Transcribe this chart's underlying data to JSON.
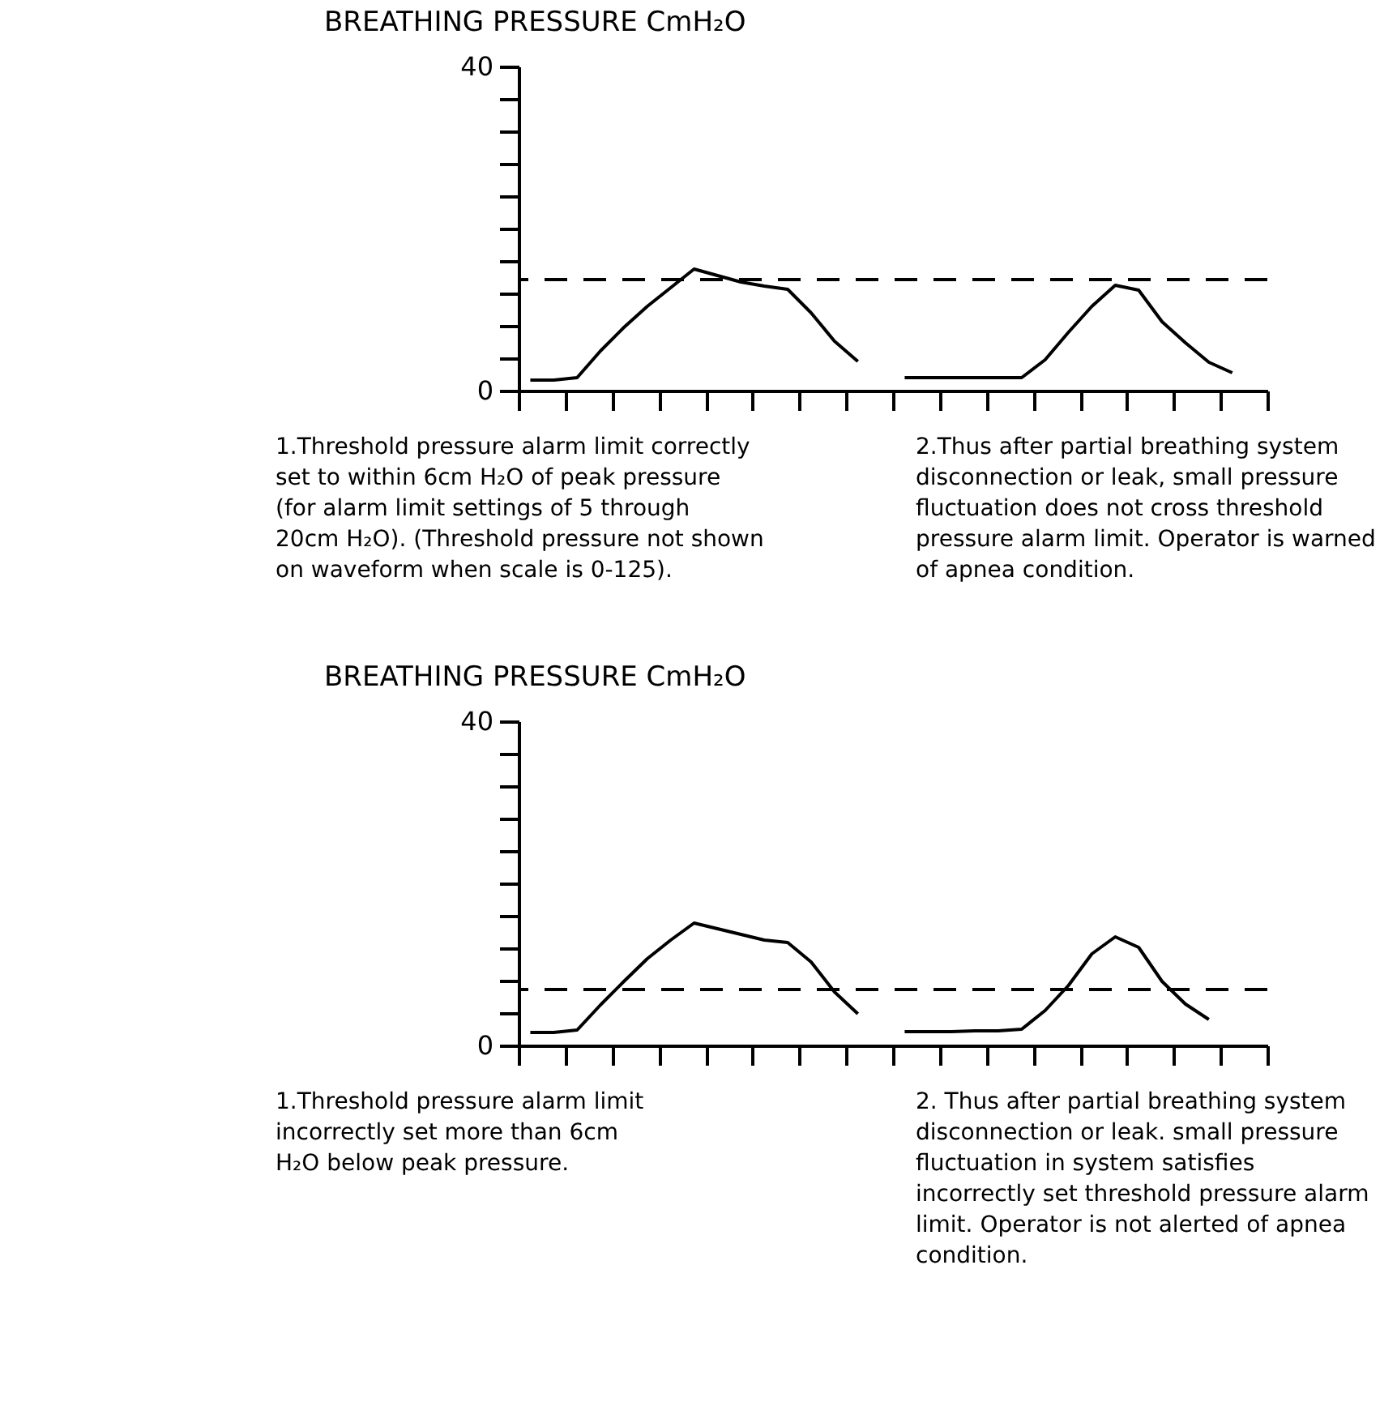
{
  "chart_data": [
    {
      "type": "line",
      "title": "BREATHING PRESSURE CmH₂O",
      "ylim": [
        0,
        40
      ],
      "categories": [
        null,
        null,
        null,
        null,
        null,
        null,
        null,
        null,
        null,
        null,
        null,
        null,
        null,
        null,
        null,
        null,
        null,
        null,
        null,
        null,
        null,
        null,
        null,
        null,
        null,
        null,
        null,
        null,
        null,
        null,
        null,
        null
      ],
      "yticks": [
        0,
        {
          "value": 4,
          "label": null
        },
        {
          "value": 8,
          "label": null
        },
        {
          "value": 12,
          "label": null
        },
        {
          "value": 16,
          "label": null
        },
        {
          "value": 20,
          "label": null
        },
        {
          "value": 24,
          "label": null
        },
        {
          "value": 28,
          "label": null
        },
        {
          "value": 32,
          "label": null
        },
        {
          "value": 36,
          "label": null
        },
        40
      ],
      "tick_labels": "y",
      "series": [
        {
          "color": "#000000",
          "values": [
            1.3,
            1.3,
            1.6,
            4.9,
            7.8,
            10.4,
            12.7,
            15.0,
            14.2,
            13.4,
            12.9,
            12.5,
            9.6,
            6.1,
            3.6,
            null,
            null,
            null,
            null,
            null,
            null,
            null,
            null,
            null,
            null,
            null,
            null,
            null,
            null,
            null,
            null,
            null
          ]
        },
        {
          "color": "#000000",
          "values": [
            null,
            null,
            null,
            null,
            null,
            null,
            null,
            null,
            null,
            null,
            null,
            null,
            null,
            null,
            null,
            null,
            1.6,
            1.6,
            1.6,
            1.6,
            1.6,
            1.6,
            3.8,
            7.2,
            10.4,
            13.0,
            12.4,
            8.5,
            5.9,
            3.5,
            2.2,
            null
          ]
        }
      ],
      "ref_lines": [
        {
          "axis": "y",
          "value": 13.7,
          "line_style": "dashed",
          "color": "#000000"
        }
      ],
      "annotations": [
        "1.Threshold pressure alarm limit correctly\n set to within 6cm H₂O of peak pressure\n (for alarm limit settings of 5 through\n 20cm H₂O). (Threshold pressure not shown\n on waveform when scale is 0-125).",
        "2.Thus after partial breathing system\n disconnection or leak, small pressure\n fluctuation does not cross threshold\n pressure alarm limit. Operator is warned\n of apnea condition."
      ]
    },
    {
      "type": "line",
      "title": "BREATHING PRESSURE CmH₂O",
      "ylim": [
        0,
        40
      ],
      "categories": [
        null,
        null,
        null,
        null,
        null,
        null,
        null,
        null,
        null,
        null,
        null,
        null,
        null,
        null,
        null,
        null,
        null,
        null,
        null,
        null,
        null,
        null,
        null,
        null,
        null,
        null,
        null,
        null,
        null,
        null,
        null,
        null
      ],
      "yticks": [
        0,
        {
          "value": 4,
          "label": null
        },
        {
          "value": 8,
          "label": null
        },
        {
          "value": 12,
          "label": null
        },
        {
          "value": 16,
          "label": null
        },
        {
          "value": 20,
          "label": null
        },
        {
          "value": 24,
          "label": null
        },
        {
          "value": 28,
          "label": null
        },
        {
          "value": 32,
          "label": null
        },
        {
          "value": 36,
          "label": null
        },
        40
      ],
      "tick_labels": "y",
      "series": [
        {
          "color": "#000000",
          "values": [
            1.6,
            1.6,
            1.9,
            5.0,
            7.9,
            10.7,
            13.0,
            15.1,
            14.4,
            13.7,
            13.0,
            12.7,
            10.3,
            6.6,
            3.9,
            null,
            null,
            null,
            null,
            null,
            null,
            null,
            null,
            null,
            null,
            null,
            null,
            null,
            null,
            null,
            null,
            null
          ]
        },
        {
          "color": "#000000",
          "values": [
            null,
            null,
            null,
            null,
            null,
            null,
            null,
            null,
            null,
            null,
            null,
            null,
            null,
            null,
            null,
            null,
            1.7,
            1.7,
            1.7,
            1.8,
            1.8,
            2.0,
            4.3,
            7.4,
            11.3,
            13.4,
            12.1,
            7.9,
            5.1,
            3.2,
            null,
            null
          ]
        }
      ],
      "ref_lines": [
        {
          "axis": "y",
          "value": 6.9,
          "line_style": "dashed",
          "color": "#000000"
        }
      ],
      "annotations": [
        "1.Threshold pressure alarm limit\n incorrectly set more than 6cm\n H₂O below peak pressure.",
        "2. Thus after partial breathing system\n disconnection or leak. small pressure\n fluctuation in system satisfies\n incorrectly set threshold pressure alarm\n limit. Operator is not alerted of apnea\n condition."
      ]
    }
  ]
}
